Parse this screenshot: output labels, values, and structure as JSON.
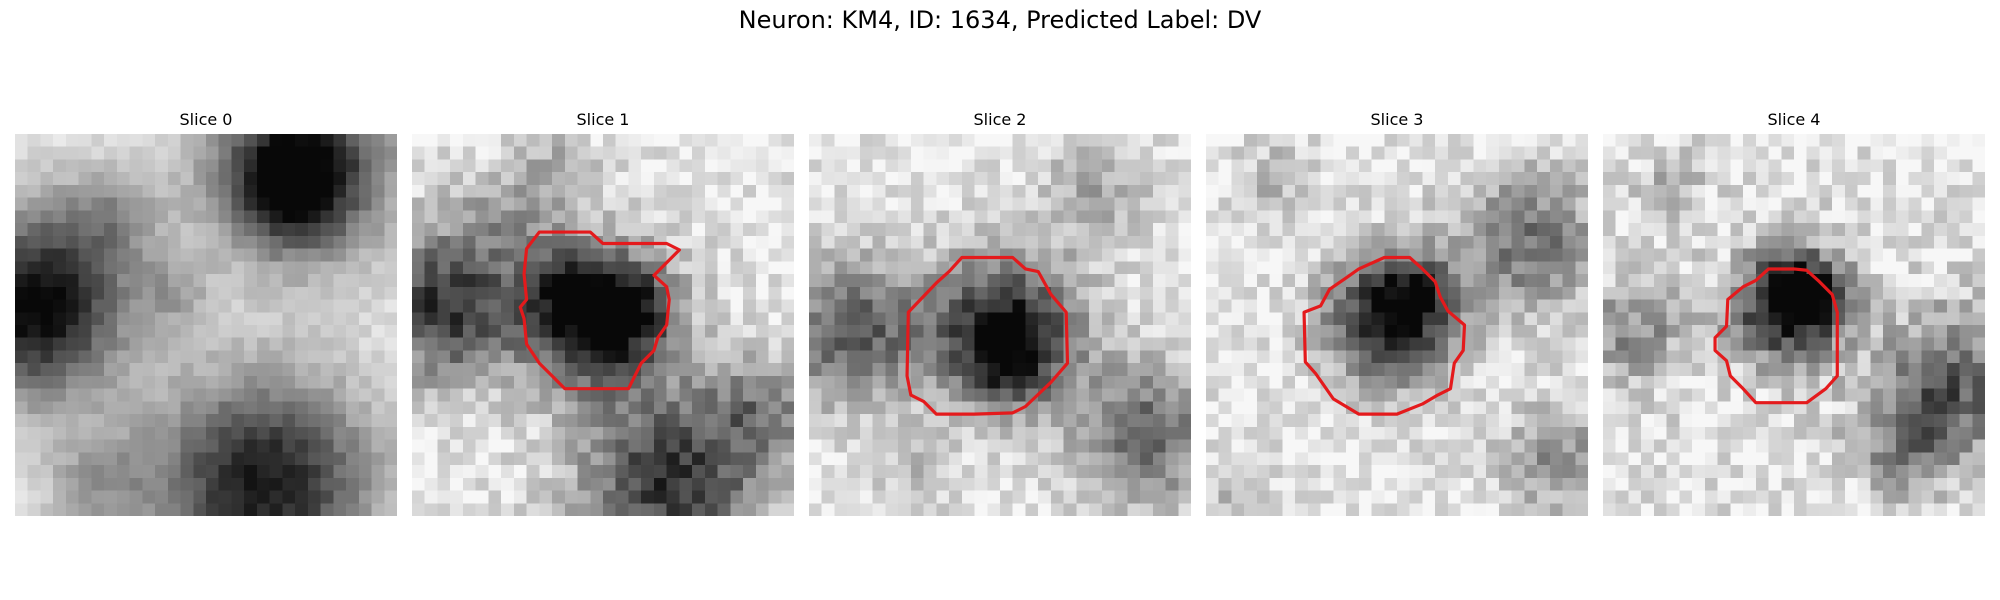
{
  "figure": {
    "title": "Neuron: KM4, ID: 1634, Predicted Label: DV"
  },
  "colors": {
    "contour": "#e41a1c",
    "background": "#ffffff"
  },
  "panels": [
    {
      "title": "Slice 0"
    },
    {
      "title": "Slice 1"
    },
    {
      "title": "Slice 2"
    },
    {
      "title": "Slice 3"
    },
    {
      "title": "Slice 4"
    }
  ]
}
